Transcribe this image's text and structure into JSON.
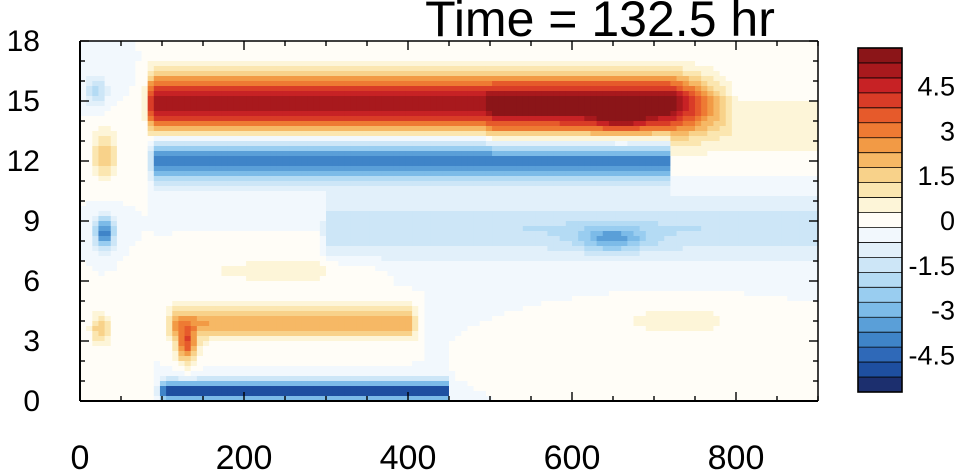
{
  "chart_data": {
    "type": "heatmap",
    "title": "Time = 132.5 hr",
    "xlabel": "",
    "ylabel": "",
    "xlim": [
      0,
      900
    ],
    "ylim": [
      0,
      18
    ],
    "x_ticks": [
      0,
      200,
      400,
      600,
      800
    ],
    "y_ticks": [
      0,
      3,
      6,
      9,
      12,
      15,
      18
    ],
    "x_tick_labels": [
      "0",
      "200",
      "400",
      "600",
      "800"
    ],
    "y_tick_labels": [
      "0",
      "3",
      "6",
      "9",
      "12",
      "15",
      "18"
    ],
    "colorbar": {
      "placement": "right",
      "levels": [
        -5.5,
        -5,
        -4.5,
        -4,
        -3.5,
        -3,
        -2.5,
        -2,
        -1.5,
        -1,
        -0.5,
        0,
        0.5,
        1,
        1.5,
        2,
        2.5,
        3,
        3.5,
        4,
        4.5,
        5,
        5.5
      ],
      "colors": [
        "#1c2f6e",
        "#1e4fa0",
        "#2f69b8",
        "#3f84c8",
        "#5a9fd8",
        "#7cbbe8",
        "#99cdf0",
        "#b4dbf4",
        "#cde6f7",
        "#e2f0fa",
        "#f2f8fd",
        "#fffdf7",
        "#fdf5d8",
        "#fbe6b0",
        "#f8d28a",
        "#f6b865",
        "#f29a45",
        "#ee7a33",
        "#e65a2b",
        "#d93c27",
        "#c72225",
        "#a8191d",
        "#8b1518"
      ],
      "tick_values": [
        -4.5,
        -3,
        -1.5,
        0,
        1.5,
        3,
        4.5
      ],
      "tick_labels": [
        "-4.5",
        "-3",
        "-1.5",
        "0",
        "1.5",
        "3",
        "4.5"
      ]
    },
    "features": [
      {
        "kind": "band",
        "x_start": 85,
        "x_end": 720,
        "y_center": 14.9,
        "y_width": 1.4,
        "peak": 5.5,
        "taper_end": 800
      },
      {
        "kind": "band",
        "x_start": 90,
        "x_end": 720,
        "y_center": 12.0,
        "y_width": 1.0,
        "peak": -4.0,
        "taper_end": 700
      },
      {
        "kind": "band",
        "x_start": 300,
        "x_end": 900,
        "y_center": 8.6,
        "y_width": 1.5,
        "peak": -1.5,
        "taper_end": 900
      },
      {
        "kind": "band",
        "x_start": 100,
        "x_end": 450,
        "y_center": 0.5,
        "y_width": 0.5,
        "peak": -5.0,
        "taper_end": 450
      },
      {
        "kind": "band",
        "x_start": 110,
        "x_end": 400,
        "y_center": 3.9,
        "y_width": 0.8,
        "peak": 2.5,
        "taper_end": 420
      },
      {
        "kind": "band",
        "x_start": 500,
        "x_end": 900,
        "y_center": 13.8,
        "y_width": 1.6,
        "peak": 0.9,
        "taper_end": 900
      },
      {
        "kind": "blob",
        "x": 30,
        "y": 8.4,
        "rx": 12,
        "ry": 0.8,
        "peak": -4.0
      },
      {
        "kind": "blob",
        "x": 30,
        "y": 12.3,
        "rx": 15,
        "ry": 1.2,
        "peak": 2.0
      },
      {
        "kind": "blob",
        "x": 25,
        "y": 3.6,
        "rx": 12,
        "ry": 0.8,
        "peak": 2.0
      },
      {
        "kind": "blob",
        "x": 20,
        "y": 15.5,
        "rx": 12,
        "ry": 0.7,
        "peak": -2.0
      },
      {
        "kind": "blob",
        "x": 130,
        "y": 2.8,
        "rx": 12,
        "ry": 0.9,
        "peak": 3.5
      },
      {
        "kind": "blob",
        "x": 250,
        "y": 6.5,
        "rx": 100,
        "ry": 0.6,
        "peak": 0.9
      },
      {
        "kind": "blob",
        "x": 660,
        "y": 14.2,
        "rx": 30,
        "ry": 0.7,
        "peak": 1.5
      },
      {
        "kind": "blob",
        "x": 650,
        "y": 8.1,
        "rx": 40,
        "ry": 0.6,
        "peak": -2.0
      },
      {
        "kind": "blob",
        "x": 730,
        "y": 4.0,
        "rx": 80,
        "ry": 0.8,
        "peak": 0.8
      }
    ]
  }
}
